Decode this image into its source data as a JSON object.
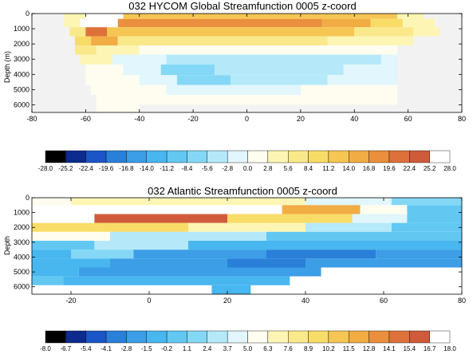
{
  "chart_data": [
    {
      "type": "heatmap",
      "title": "032 HYCOM Global Streamfunction 0005 z-coord",
      "xlabel": "",
      "ylabel": "Depth (m)",
      "xlim": [
        -80,
        80
      ],
      "ylim": [
        6500,
        0
      ],
      "x_ticks": [
        -80,
        -60,
        -40,
        -20,
        0,
        20,
        40,
        60,
        80
      ],
      "y_ticks": [
        0,
        1000,
        2000,
        3000,
        4000,
        5000,
        6000
      ],
      "colorbar": {
        "levels": [
          -28.0,
          -25.2,
          -22.4,
          -19.6,
          -16.8,
          -14.0,
          -11.2,
          -8.4,
          -5.6,
          -2.8,
          0.0,
          2.8,
          5.6,
          8.4,
          11.2,
          14.0,
          16.8,
          19.6,
          22.4,
          25.2,
          28.0
        ],
        "colors": [
          "#000000",
          "#0d2b8e",
          "#1b55c7",
          "#2a7fd8",
          "#3b9ee6",
          "#48b6ef",
          "#62c8f2",
          "#84d8f5",
          "#b5e9fa",
          "#e1f6fd",
          "#fefdf0",
          "#fcf5b4",
          "#f9e98b",
          "#f8dc68",
          "#f5c653",
          "#f1ac44",
          "#ea8f3d",
          "#de713a",
          "#cf5b3b",
          "#ffffff"
        ]
      },
      "rows": [
        {
          "depth": 100,
          "segments": [
            {
              "x0": -80,
              "x1": -68,
              "value": "nodata"
            },
            {
              "x0": -68,
              "x1": -60,
              "value": 2.8
            },
            {
              "x0": -60,
              "x1": -46,
              "value": 28.0
            },
            {
              "x0": -46,
              "x1": 56,
              "value": 11.2
            },
            {
              "x0": 56,
              "x1": 66,
              "value": 2.8
            },
            {
              "x0": 66,
              "x1": 80,
              "value": "nodata"
            }
          ]
        },
        {
          "depth": 600,
          "segments": [
            {
              "x0": -80,
              "x1": -68,
              "value": "nodata"
            },
            {
              "x0": -68,
              "x1": -62,
              "value": 2.8
            },
            {
              "x0": -62,
              "x1": -48,
              "value": 28.0
            },
            {
              "x0": -48,
              "x1": 28,
              "value": 16.8
            },
            {
              "x0": 28,
              "x1": 46,
              "value": 14.0
            },
            {
              "x0": 46,
              "x1": 58,
              "value": 8.4
            },
            {
              "x0": 58,
              "x1": 70,
              "value": 2.8
            },
            {
              "x0": 70,
              "x1": 80,
              "value": "nodata"
            }
          ]
        },
        {
          "depth": 1200,
          "segments": [
            {
              "x0": -80,
              "x1": -66,
              "value": "nodata"
            },
            {
              "x0": -66,
              "x1": -60,
              "value": 5.6
            },
            {
              "x0": -60,
              "x1": -52,
              "value": 19.6
            },
            {
              "x0": -52,
              "x1": 40,
              "value": 11.2
            },
            {
              "x0": 40,
              "x1": 62,
              "value": 5.6
            },
            {
              "x0": 62,
              "x1": 72,
              "value": 2.8
            },
            {
              "x0": 72,
              "x1": 80,
              "value": "nodata"
            }
          ]
        },
        {
          "depth": 1800,
          "segments": [
            {
              "x0": -80,
              "x1": -64,
              "value": "nodata"
            },
            {
              "x0": -64,
              "x1": -58,
              "value": 8.4
            },
            {
              "x0": -58,
              "x1": -48,
              "value": 14.0
            },
            {
              "x0": -48,
              "x1": 30,
              "value": 5.6
            },
            {
              "x0": 30,
              "x1": 62,
              "value": 2.8
            },
            {
              "x0": 62,
              "x1": 80,
              "value": "nodata"
            }
          ]
        },
        {
          "depth": 2400,
          "segments": [
            {
              "x0": -80,
              "x1": -64,
              "value": "nodata"
            },
            {
              "x0": -64,
              "x1": -56,
              "value": 5.6
            },
            {
              "x0": -56,
              "x1": -40,
              "value": 2.8
            },
            {
              "x0": -40,
              "x1": 56,
              "value": 0.0
            },
            {
              "x0": 56,
              "x1": 80,
              "value": "nodata"
            }
          ]
        },
        {
          "depth": 3000,
          "segments": [
            {
              "x0": -80,
              "x1": -62,
              "value": "nodata"
            },
            {
              "x0": -62,
              "x1": -50,
              "value": 2.8
            },
            {
              "x0": -50,
              "x1": -30,
              "value": -2.8
            },
            {
              "x0": -30,
              "x1": 50,
              "value": -5.6
            },
            {
              "x0": 50,
              "x1": 56,
              "value": -2.8
            },
            {
              "x0": 56,
              "x1": 80,
              "value": "nodata"
            }
          ]
        },
        {
          "depth": 3700,
          "segments": [
            {
              "x0": -80,
              "x1": -60,
              "value": "nodata"
            },
            {
              "x0": -60,
              "x1": -46,
              "value": 0.0
            },
            {
              "x0": -46,
              "x1": -32,
              "value": -2.8
            },
            {
              "x0": -32,
              "x1": -12,
              "value": -8.4
            },
            {
              "x0": -12,
              "x1": 36,
              "value": -5.6
            },
            {
              "x0": 36,
              "x1": 56,
              "value": -2.8
            },
            {
              "x0": 56,
              "x1": 80,
              "value": "nodata"
            }
          ]
        },
        {
          "depth": 4400,
          "segments": [
            {
              "x0": -80,
              "x1": -60,
              "value": "nodata"
            },
            {
              "x0": -60,
              "x1": -40,
              "value": 0.0
            },
            {
              "x0": -40,
              "x1": -26,
              "value": -2.8
            },
            {
              "x0": -26,
              "x1": -6,
              "value": -8.4
            },
            {
              "x0": -6,
              "x1": 30,
              "value": -5.6
            },
            {
              "x0": 30,
              "x1": 56,
              "value": -2.8
            },
            {
              "x0": 56,
              "x1": 80,
              "value": "nodata"
            }
          ]
        },
        {
          "depth": 5000,
          "segments": [
            {
              "x0": -80,
              "x1": -58,
              "value": "nodata"
            },
            {
              "x0": -58,
              "x1": -30,
              "value": 0.0
            },
            {
              "x0": -30,
              "x1": 20,
              "value": -2.8
            },
            {
              "x0": 20,
              "x1": 56,
              "value": 0.0
            },
            {
              "x0": 56,
              "x1": 80,
              "value": "nodata"
            }
          ]
        },
        {
          "depth": 5700,
          "segments": [
            {
              "x0": -80,
              "x1": -56,
              "value": "nodata"
            },
            {
              "x0": -56,
              "x1": 56,
              "value": 0.0
            },
            {
              "x0": 56,
              "x1": 80,
              "value": "nodata"
            }
          ]
        },
        {
          "depth": 6300,
          "segments": [
            {
              "x0": -80,
              "x1": -56,
              "value": "nodata"
            },
            {
              "x0": -56,
              "x1": -40,
              "value": 0.0
            },
            {
              "x0": -40,
              "x1": 80,
              "value": "nodata"
            }
          ]
        }
      ]
    },
    {
      "type": "heatmap",
      "title": "032 Atlantic Streamfunction 0005 z-coord",
      "xlabel": "",
      "ylabel": "Depth",
      "xlim": [
        -30,
        80
      ],
      "ylim": [
        6500,
        0
      ],
      "x_ticks": [
        -20,
        0,
        20,
        40,
        60,
        80
      ],
      "y_ticks": [
        0,
        1000,
        2000,
        3000,
        4000,
        5000,
        6000
      ],
      "colorbar": {
        "levels": [
          -8.0,
          -6.7,
          -5.4,
          -4.1,
          -2.8,
          -1.5,
          -0.2,
          1.1,
          2.4,
          3.7,
          5.0,
          6.3,
          7.6,
          8.9,
          10.2,
          11.5,
          12.8,
          14.1,
          15.4,
          16.7,
          18.0
        ],
        "colors": [
          "#000000",
          "#0d2b8e",
          "#1b55c7",
          "#2a7fd8",
          "#3b9ee6",
          "#48b6ef",
          "#62c8f2",
          "#84d8f5",
          "#b5e9fa",
          "#e1f6fd",
          "#fefdf0",
          "#fcf5b4",
          "#f9e98b",
          "#f8dc68",
          "#f5c653",
          "#f1ac44",
          "#ea8f3d",
          "#de713a",
          "#cf5b3b",
          "#ffffff"
        ]
      },
      "rows": [
        {
          "depth": 200,
          "segments": [
            {
              "x0": -30,
              "x1": -20,
              "value": 5.0
            },
            {
              "x0": -20,
              "x1": 40,
              "value": 6.3
            },
            {
              "x0": 40,
              "x1": 62,
              "value": 3.7
            },
            {
              "x0": 62,
              "x1": 80,
              "value": 1.1
            }
          ]
        },
        {
          "depth": 800,
          "segments": [
            {
              "x0": -30,
              "x1": 34,
              "value": 16.7
            },
            {
              "x0": 34,
              "x1": 54,
              "value": 11.5
            },
            {
              "x0": 54,
              "x1": 66,
              "value": 5.0
            },
            {
              "x0": 66,
              "x1": 80,
              "value": -0.2
            }
          ]
        },
        {
          "depth": 1400,
          "segments": [
            {
              "x0": -30,
              "x1": -14,
              "value": 18.0
            },
            {
              "x0": -14,
              "x1": 20,
              "value": 15.4
            },
            {
              "x0": 20,
              "x1": 52,
              "value": 8.9
            },
            {
              "x0": 52,
              "x1": 66,
              "value": 3.7
            },
            {
              "x0": 66,
              "x1": 80,
              "value": -0.2
            }
          ]
        },
        {
          "depth": 2000,
          "segments": [
            {
              "x0": -30,
              "x1": 10,
              "value": 8.9
            },
            {
              "x0": 10,
              "x1": 40,
              "value": 6.3
            },
            {
              "x0": 40,
              "x1": 62,
              "value": 2.4
            },
            {
              "x0": 62,
              "x1": 80,
              "value": -0.2
            }
          ]
        },
        {
          "depth": 2600,
          "segments": [
            {
              "x0": -30,
              "x1": -10,
              "value": 5.0
            },
            {
              "x0": -10,
              "x1": 30,
              "value": 2.4
            },
            {
              "x0": 30,
              "x1": 80,
              "value": -0.2
            }
          ]
        },
        {
          "depth": 3200,
          "segments": [
            {
              "x0": -30,
              "x1": -14,
              "value": -0.2
            },
            {
              "x0": -14,
              "x1": 10,
              "value": 2.4
            },
            {
              "x0": 10,
              "x1": 80,
              "value": -1.5
            }
          ]
        },
        {
          "depth": 3800,
          "segments": [
            {
              "x0": -30,
              "x1": -20,
              "value": -1.5
            },
            {
              "x0": -20,
              "x1": -4,
              "value": 1.1
            },
            {
              "x0": -4,
              "x1": 30,
              "value": -2.8
            },
            {
              "x0": 30,
              "x1": 58,
              "value": -4.1
            },
            {
              "x0": 58,
              "x1": 80,
              "value": -2.8
            }
          ]
        },
        {
          "depth": 4400,
          "segments": [
            {
              "x0": -30,
              "x1": -10,
              "value": -1.5
            },
            {
              "x0": -10,
              "x1": 20,
              "value": -2.8
            },
            {
              "x0": 20,
              "x1": 40,
              "value": -4.1
            },
            {
              "x0": 40,
              "x1": 80,
              "value": -2.8
            }
          ]
        },
        {
          "depth": 5000,
          "segments": [
            {
              "x0": -30,
              "x1": -18,
              "value": -1.5
            },
            {
              "x0": -18,
              "x1": 44,
              "value": -2.8
            },
            {
              "x0": 44,
              "x1": 80,
              "value": "nodata"
            }
          ]
        },
        {
          "depth": 5600,
          "segments": [
            {
              "x0": -30,
              "x1": -22,
              "value": -0.2
            },
            {
              "x0": -22,
              "x1": 36,
              "value": -1.5
            },
            {
              "x0": 36,
              "x1": 80,
              "value": "nodata"
            }
          ]
        },
        {
          "depth": 6200,
          "segments": [
            {
              "x0": -30,
              "x1": 16,
              "value": "nodata"
            },
            {
              "x0": 16,
              "x1": 26,
              "value": -1.5
            },
            {
              "x0": 26,
              "x1": 80,
              "value": "nodata"
            }
          ]
        }
      ]
    }
  ]
}
